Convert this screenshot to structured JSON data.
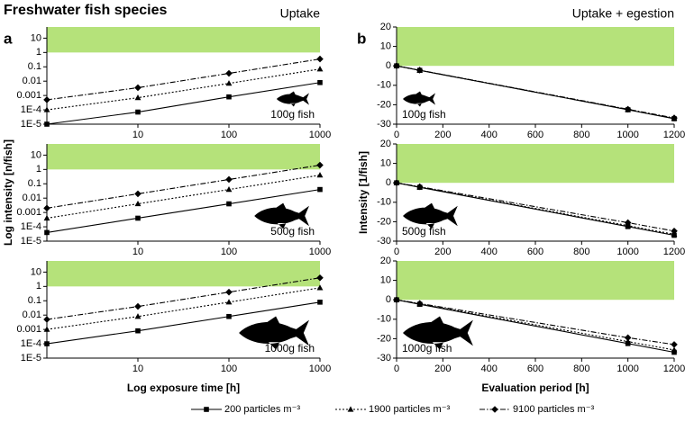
{
  "title": "Freshwater fish species",
  "legend": [
    "200 particles m⁻³",
    "1900 particles m⁻³",
    "9100 particles m⁻³"
  ],
  "chart_data": [
    {
      "type": "line",
      "panel": "a",
      "column_title": "Uptake",
      "annotation": "100g fish",
      "xscale": "log",
      "yscale": "log",
      "xlim": [
        1,
        1000
      ],
      "ylim": [
        1e-05,
        60
      ],
      "xticks": [
        10,
        100,
        1000
      ],
      "yticks": [
        {
          "value": 1e-05,
          "label": "1E-5"
        },
        {
          "value": 0.0001,
          "label": "1E-4"
        },
        0.001,
        0.01,
        0.1,
        1,
        10
      ],
      "band_min": 1,
      "band_color": "#b5e27a",
      "x": [
        1,
        10,
        100,
        1000
      ],
      "series": [
        {
          "color": "#000000",
          "line_style": "solid",
          "marker": "square",
          "values": [
            1e-05,
            7e-05,
            0.0008,
            0.008
          ]
        },
        {
          "color": "#000000",
          "line_style": "dotted",
          "marker": "triangle",
          "values": [
            0.0001,
            0.0007,
            0.007,
            0.07
          ]
        },
        {
          "color": "#000000",
          "line_style": "dashdot",
          "marker": "diamond",
          "values": [
            0.0005,
            0.0035,
            0.035,
            0.35
          ]
        }
      ]
    },
    {
      "type": "line",
      "ylabel": "Log intensity [n/fish]",
      "annotation": "500g fish",
      "xscale": "log",
      "yscale": "log",
      "xlim": [
        1,
        1000
      ],
      "ylim": [
        1e-05,
        60
      ],
      "xticks": [
        10,
        100,
        1000
      ],
      "yticks": [
        {
          "value": 1e-05,
          "label": "1E-5"
        },
        {
          "value": 0.0001,
          "label": "1E-4"
        },
        0.001,
        0.01,
        0.1,
        1,
        10
      ],
      "band_min": 1,
      "band_color": "#b5e27a",
      "x": [
        1,
        10,
        100,
        1000
      ],
      "series": [
        {
          "color": "#000000",
          "line_style": "solid",
          "marker": "square",
          "values": [
            4e-05,
            0.0004,
            0.004,
            0.04
          ]
        },
        {
          "color": "#000000",
          "line_style": "dotted",
          "marker": "triangle",
          "values": [
            0.0004,
            0.004,
            0.04,
            0.4
          ]
        },
        {
          "color": "#000000",
          "line_style": "dashdot",
          "marker": "diamond",
          "values": [
            0.002,
            0.02,
            0.2,
            2
          ]
        }
      ]
    },
    {
      "type": "line",
      "xlabel": "Log exposure time [h]",
      "annotation": "1000g fish",
      "xscale": "log",
      "yscale": "log",
      "xlim": [
        1,
        1000
      ],
      "ylim": [
        1e-05,
        60
      ],
      "xticks": [
        10,
        100,
        1000
      ],
      "yticks": [
        {
          "value": 1e-05,
          "label": "1E-5"
        },
        {
          "value": 0.0001,
          "label": "1E-4"
        },
        0.001,
        0.01,
        0.1,
        1,
        10
      ],
      "band_min": 1,
      "band_color": "#b5e27a",
      "x": [
        1,
        10,
        100,
        1000
      ],
      "series": [
        {
          "color": "#000000",
          "line_style": "solid",
          "marker": "square",
          "values": [
            0.0001,
            0.0008,
            0.008,
            0.08
          ]
        },
        {
          "color": "#000000",
          "line_style": "dotted",
          "marker": "triangle",
          "values": [
            0.001,
            0.008,
            0.08,
            0.8
          ]
        },
        {
          "color": "#000000",
          "line_style": "dashdot",
          "marker": "diamond",
          "values": [
            0.005,
            0.04,
            0.4,
            4
          ]
        }
      ]
    },
    {
      "type": "line",
      "panel": "b",
      "column_title": "Uptake + egestion",
      "annotation": "100g fish",
      "xscale": "linear",
      "yscale": "linear",
      "xlim": [
        0,
        1200
      ],
      "ylim": [
        -30,
        20
      ],
      "xticks": [
        0,
        200,
        400,
        600,
        800,
        1000,
        1200
      ],
      "yticks": [
        -30,
        -20,
        -10,
        0,
        10,
        20
      ],
      "band_min": 0,
      "band_color": "#b5e27a",
      "x": [
        0,
        100,
        1000,
        1200
      ],
      "series": [
        {
          "color": "#000000",
          "line_style": "solid",
          "marker": "square",
          "values": [
            0,
            -2.3,
            -22.6,
            -27.2
          ]
        },
        {
          "color": "#000000",
          "line_style": "dotted",
          "marker": "triangle",
          "values": [
            0,
            -2.3,
            -22.5,
            -27
          ]
        },
        {
          "color": "#000000",
          "line_style": "dashdot",
          "marker": "diamond",
          "values": [
            0,
            -2.2,
            -22.3,
            -26.8
          ]
        }
      ]
    },
    {
      "type": "line",
      "ylabel": "Intensity [1/fish]",
      "annotation": "500g fish",
      "xscale": "linear",
      "yscale": "linear",
      "xlim": [
        0,
        1200
      ],
      "ylim": [
        -30,
        20
      ],
      "xticks": [
        0,
        200,
        400,
        600,
        800,
        1000,
        1200
      ],
      "yticks": [
        -30,
        -20,
        -10,
        0,
        10,
        20
      ],
      "band_min": 0,
      "band_color": "#b5e27a",
      "x": [
        0,
        100,
        1000,
        1200
      ],
      "series": [
        {
          "color": "#000000",
          "line_style": "solid",
          "marker": "square",
          "values": [
            0,
            -2.3,
            -22.5,
            -27
          ]
        },
        {
          "color": "#000000",
          "line_style": "dotted",
          "marker": "triangle",
          "values": [
            0,
            -2.2,
            -22,
            -26.5
          ]
        },
        {
          "color": "#000000",
          "line_style": "dashdot",
          "marker": "diamond",
          "values": [
            0,
            -2,
            -20.5,
            -24.8
          ]
        }
      ]
    },
    {
      "type": "line",
      "xlabel": "Evaluation period [h]",
      "annotation": "1000g fish",
      "xscale": "linear",
      "yscale": "linear",
      "xlim": [
        0,
        1200
      ],
      "ylim": [
        -30,
        20
      ],
      "xticks": [
        0,
        200,
        400,
        600,
        800,
        1000,
        1200
      ],
      "yticks": [
        -30,
        -20,
        -10,
        0,
        10,
        20
      ],
      "band_min": 0,
      "band_color": "#b5e27a",
      "x": [
        0,
        100,
        1000,
        1200
      ],
      "series": [
        {
          "color": "#000000",
          "line_style": "solid",
          "marker": "square",
          "values": [
            0,
            -2.3,
            -22.5,
            -27
          ]
        },
        {
          "color": "#000000",
          "line_style": "dotted",
          "marker": "triangle",
          "values": [
            0,
            -2.1,
            -21.5,
            -25.8
          ]
        },
        {
          "color": "#000000",
          "line_style": "dashdot",
          "marker": "diamond",
          "values": [
            0,
            -1.9,
            -19.5,
            -23
          ]
        }
      ]
    }
  ]
}
